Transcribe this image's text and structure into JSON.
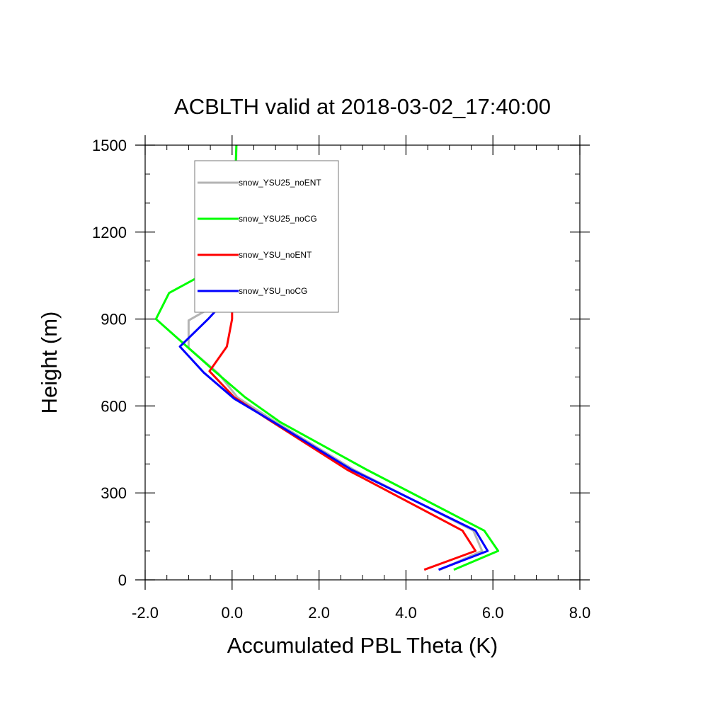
{
  "chart_data": {
    "type": "line",
    "title": "ACBLTH valid at 2018-03-02_17:40:00",
    "xlabel": "Accumulated PBL Theta (K)",
    "ylabel": "Height (m)",
    "xlim": [
      -2.0,
      8.0
    ],
    "ylim": [
      0,
      1500
    ],
    "xticks": [
      -2.0,
      0.0,
      2.0,
      4.0,
      6.0,
      8.0
    ],
    "xtick_labels": [
      "-2.0",
      "0.0",
      "2.0",
      "4.0",
      "6.0",
      "8.0"
    ],
    "yticks": [
      0,
      300,
      600,
      900,
      1200,
      1500
    ],
    "ytick_labels": [
      "0",
      "300",
      "600",
      "900",
      "1200",
      "1500"
    ],
    "legend_position": "top-left",
    "series": [
      {
        "name": "snow_YSU25_noENT",
        "color": "#b4b4b4",
        "points": [
          [
            4.78,
            35
          ],
          [
            5.75,
            100
          ],
          [
            5.55,
            170
          ],
          [
            2.8,
            380
          ],
          [
            1.0,
            545
          ],
          [
            0.12,
            630
          ],
          [
            -0.3,
            710
          ],
          [
            -1.0,
            800
          ],
          [
            -1.0,
            895
          ],
          [
            0.05,
            985
          ],
          [
            0.05,
            1100
          ],
          [
            0.08,
            1300
          ],
          [
            0.1,
            1500
          ]
        ]
      },
      {
        "name": "snow_YSU25_noCG",
        "color": "#00ff00",
        "points": [
          [
            5.1,
            35
          ],
          [
            6.12,
            100
          ],
          [
            5.8,
            170
          ],
          [
            3.1,
            380
          ],
          [
            1.1,
            545
          ],
          [
            0.3,
            630
          ],
          [
            -0.4,
            720
          ],
          [
            -1.75,
            900
          ],
          [
            -1.45,
            990
          ],
          [
            -0.22,
            1090
          ],
          [
            -0.03,
            1190
          ],
          [
            0.05,
            1300
          ],
          [
            0.1,
            1500
          ]
        ]
      },
      {
        "name": "snow_YSU_noENT",
        "color": "#ff0000",
        "points": [
          [
            4.42,
            35
          ],
          [
            5.6,
            100
          ],
          [
            5.3,
            170
          ],
          [
            2.65,
            380
          ],
          [
            0.92,
            545
          ],
          [
            0.05,
            630
          ],
          [
            -0.52,
            720
          ],
          [
            -0.12,
            805
          ],
          [
            0,
            900
          ],
          [
            0,
            990
          ]
        ]
      },
      {
        "name": "snow_YSU_noCG",
        "color": "#0000ff",
        "points": [
          [
            4.75,
            35
          ],
          [
            5.88,
            100
          ],
          [
            5.6,
            170
          ],
          [
            2.75,
            380
          ],
          [
            0.95,
            545
          ],
          [
            0.05,
            625
          ],
          [
            -0.65,
            715
          ],
          [
            -1.2,
            805
          ],
          [
            -0.55,
            900
          ],
          [
            0,
            990
          ]
        ]
      }
    ]
  }
}
